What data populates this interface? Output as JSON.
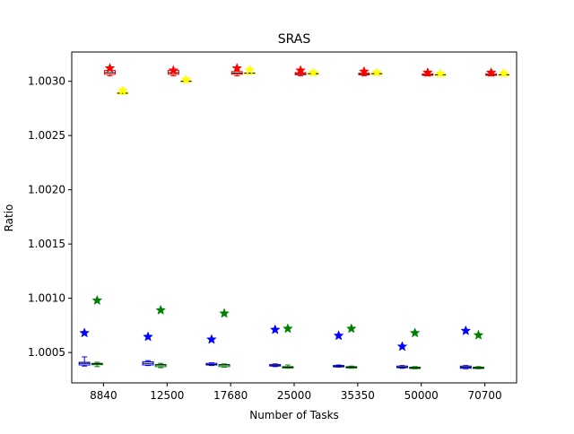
{
  "chart_data": {
    "type": "box",
    "title": "SRAS",
    "xlabel": "Number of Tasks",
    "ylabel": "Ratio",
    "categories": [
      "8840",
      "12500",
      "17680",
      "25000",
      "35350",
      "50000",
      "70700"
    ],
    "ylim": [
      1.00022,
      1.00327
    ],
    "yticks": [
      "1.0005",
      "1.0010",
      "1.0015",
      "1.0020",
      "1.0025",
      "1.0030"
    ],
    "grid": false,
    "series": [
      {
        "color": "#0000ff",
        "offset": -0.3,
        "boxes": [
          {
            "min": 1.000375,
            "q1": 1.000385,
            "med": 1.0004,
            "q3": 1.00041,
            "max": 1.00046,
            "flier": 1.00068
          },
          {
            "min": 1.00038,
            "q1": 1.000385,
            "med": 1.0004,
            "q3": 1.000415,
            "max": 1.000425,
            "flier": 1.000645
          },
          {
            "min": 1.00038,
            "q1": 1.000385,
            "med": 1.00039,
            "q3": 1.0004,
            "max": 1.000405,
            "flier": 1.00062
          },
          {
            "min": 1.00037,
            "q1": 1.000375,
            "med": 1.00038,
            "q3": 1.00039,
            "max": 1.000395,
            "flier": 1.00071
          },
          {
            "min": 1.000365,
            "q1": 1.00037,
            "med": 1.000375,
            "q3": 1.00038,
            "max": 1.000385,
            "flier": 1.000655
          },
          {
            "min": 1.000355,
            "q1": 1.00036,
            "med": 1.000365,
            "q3": 1.000375,
            "max": 1.00038,
            "flier": 1.000555
          },
          {
            "min": 1.00035,
            "q1": 1.000355,
            "med": 1.000365,
            "q3": 1.000375,
            "max": 1.00038,
            "flier": 1.0007
          }
        ]
      },
      {
        "color": "#008000",
        "offset": -0.1,
        "boxes": [
          {
            "min": 1.00037,
            "q1": 1.00039,
            "med": 1.000395,
            "q3": 1.0004,
            "max": 1.00041,
            "flier": 1.00098
          },
          {
            "min": 1.00036,
            "q1": 1.00037,
            "med": 1.000385,
            "q3": 1.00039,
            "max": 1.0004,
            "flier": 1.00089
          },
          {
            "min": 1.000365,
            "q1": 1.00037,
            "med": 1.000385,
            "q3": 1.00039,
            "max": 1.000395,
            "flier": 1.00086
          },
          {
            "min": 1.000355,
            "q1": 1.00036,
            "med": 1.000365,
            "q3": 1.00037,
            "max": 1.000385,
            "flier": 1.00072
          },
          {
            "min": 1.000355,
            "q1": 1.00036,
            "med": 1.000365,
            "q3": 1.00037,
            "max": 1.000375,
            "flier": 1.00072
          },
          {
            "min": 1.00035,
            "q1": 1.000355,
            "med": 1.00036,
            "q3": 1.000365,
            "max": 1.00037,
            "flier": 1.00068
          },
          {
            "min": 1.00035,
            "q1": 1.000355,
            "med": 1.00036,
            "q3": 1.000365,
            "max": 1.00037,
            "flier": 1.00066
          }
        ]
      },
      {
        "color": "#ff0000",
        "offset": 0.1,
        "boxes": [
          {
            "min": 1.00305,
            "q1": 1.003065,
            "med": 1.00308,
            "q3": 1.0031,
            "max": 1.00311,
            "flier": 1.00312
          },
          {
            "min": 1.00305,
            "q1": 1.003065,
            "med": 1.00308,
            "q3": 1.0031,
            "max": 1.003105,
            "flier": 1.0031
          },
          {
            "min": 1.00305,
            "q1": 1.003065,
            "med": 1.003075,
            "q3": 1.00309,
            "max": 1.0031,
            "flier": 1.00312
          },
          {
            "min": 1.00305,
            "q1": 1.00306,
            "med": 1.00307,
            "q3": 1.00308,
            "max": 1.003095,
            "flier": 1.0031
          },
          {
            "min": 1.00305,
            "q1": 1.00306,
            "med": 1.003065,
            "q3": 1.003075,
            "max": 1.00309,
            "flier": 1.00309
          },
          {
            "min": 1.00305,
            "q1": 1.003055,
            "med": 1.00306,
            "q3": 1.00307,
            "max": 1.003085,
            "flier": 1.00308
          },
          {
            "min": 1.00305,
            "q1": 1.003055,
            "med": 1.00306,
            "q3": 1.00307,
            "max": 1.003085,
            "flier": 1.00308
          }
        ]
      },
      {
        "color": "#ffff00",
        "offset": 0.3,
        "boxes": [
          {
            "min": 1.00288,
            "q1": 1.002885,
            "med": 1.00289,
            "q3": 1.0029,
            "max": 1.00291,
            "flier": 1.002915
          },
          {
            "min": 1.00299,
            "q1": 1.002995,
            "med": 1.003,
            "q3": 1.003005,
            "max": 1.00301,
            "flier": 1.003015
          },
          {
            "min": 1.003065,
            "q1": 1.00307,
            "med": 1.003075,
            "q3": 1.00308,
            "max": 1.00309,
            "flier": 1.003105
          },
          {
            "min": 1.00306,
            "q1": 1.003065,
            "med": 1.00307,
            "q3": 1.003075,
            "max": 1.00308,
            "flier": 1.00308
          },
          {
            "min": 1.00306,
            "q1": 1.003065,
            "med": 1.00307,
            "q3": 1.003075,
            "max": 1.00308,
            "flier": 1.00308
          },
          {
            "min": 1.00305,
            "q1": 1.003055,
            "med": 1.00306,
            "q3": 1.003065,
            "max": 1.00307,
            "flier": 1.00307
          },
          {
            "min": 1.00305,
            "q1": 1.003055,
            "med": 1.00306,
            "q3": 1.003065,
            "max": 1.00307,
            "flier": 1.003075
          }
        ]
      }
    ]
  }
}
